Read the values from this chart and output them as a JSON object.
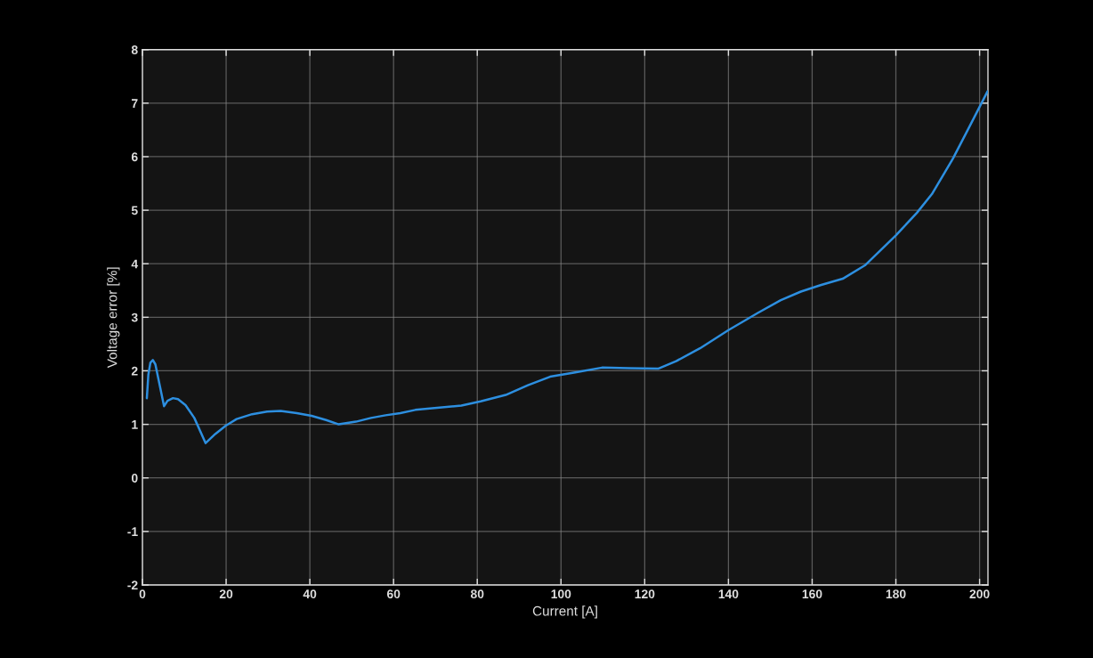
{
  "chart_data": {
    "type": "line",
    "xlabel": "Current [A]",
    "ylabel": "Voltage error [%]",
    "x": [
      1.06,
      1.42,
      1.9,
      2.5,
      3.1,
      3.76,
      5.17,
      6.0,
      7.3,
      8.5,
      10.3,
      12.4,
      15.1,
      17.4,
      19.8,
      22.5,
      26.2,
      29.8,
      33.0,
      36.9,
      40.4,
      43.9,
      46.9,
      51.0,
      54.6,
      58.1,
      61.6,
      65.2,
      76.2,
      80.8,
      86.8,
      92.1,
      97.4,
      103.4,
      109.8,
      116.2,
      123.2,
      127.5,
      133.2,
      140.0,
      147.0,
      152.5,
      157.3,
      162.0,
      167.3,
      172.6,
      180.0,
      185.0,
      188.6,
      193.6,
      197.7,
      201.9
    ],
    "series": [
      {
        "color": "#2d8fe0",
        "values": [
          1.49,
          1.93,
          2.15,
          2.2,
          2.12,
          1.87,
          1.34,
          1.44,
          1.49,
          1.47,
          1.36,
          1.12,
          0.65,
          0.82,
          0.97,
          1.1,
          1.19,
          1.24,
          1.25,
          1.21,
          1.16,
          1.08,
          1.0,
          1.05,
          1.12,
          1.17,
          1.21,
          1.27,
          1.35,
          1.43,
          1.55,
          1.73,
          1.89,
          1.97,
          2.06,
          2.05,
          2.04,
          2.18,
          2.42,
          2.76,
          3.08,
          3.32,
          3.48,
          3.6,
          3.72,
          3.97,
          4.53,
          4.95,
          5.3,
          5.96,
          6.58,
          7.22
        ]
      }
    ],
    "xlim": [
      0,
      202
    ],
    "ylim": [
      -2,
      8
    ],
    "xticks": [
      0,
      20,
      40,
      60,
      80,
      100,
      120,
      140,
      160,
      180,
      200
    ],
    "yticks": [
      -2,
      -1,
      0,
      1,
      2,
      3,
      4,
      5,
      6,
      7,
      8
    ],
    "grid": true
  }
}
